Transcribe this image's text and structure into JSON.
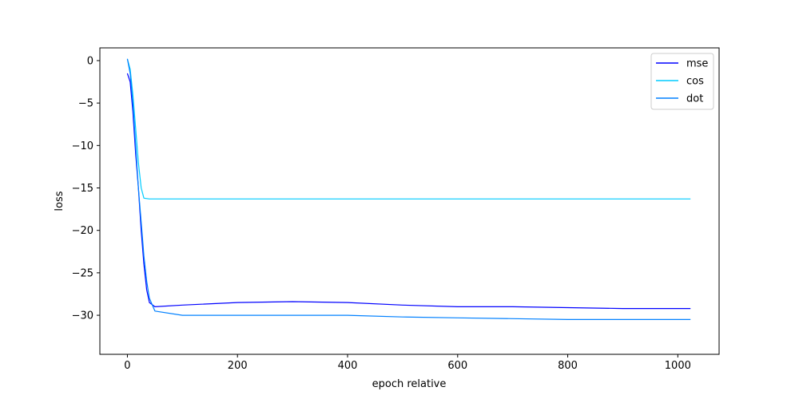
{
  "chart_data": {
    "type": "line",
    "title": "",
    "xlabel": "epoch relative",
    "ylabel": "loss",
    "xlim": [
      -50,
      1075
    ],
    "ylim": [
      -34.6,
      1.5
    ],
    "xticks": [
      0,
      200,
      400,
      600,
      800,
      1000
    ],
    "yticks": [
      0,
      -5,
      -10,
      -15,
      -20,
      -25,
      -30
    ],
    "grid": false,
    "legend_position": "top-right",
    "series": [
      {
        "name": "mse",
        "color": "#0000ff",
        "x": [
          0,
          5,
          10,
          15,
          20,
          25,
          30,
          35,
          40,
          50,
          100,
          200,
          300,
          400,
          500,
          600,
          700,
          800,
          900,
          1000,
          1023
        ],
        "y": [
          -1.5,
          -2.5,
          -6,
          -11,
          -15,
          -20,
          -24,
          -27,
          -28.5,
          -29,
          -28.8,
          -28.5,
          -28.4,
          -28.5,
          -28.8,
          -29.0,
          -29.0,
          -29.1,
          -29.2,
          -29.2,
          -29.2
        ]
      },
      {
        "name": "cos",
        "color": "#00ccff",
        "x": [
          0,
          5,
          10,
          15,
          20,
          25,
          30,
          40,
          100,
          200,
          400,
          600,
          800,
          1000,
          1023
        ],
        "y": [
          0.2,
          -1,
          -4,
          -8,
          -12,
          -15,
          -16.2,
          -16.3,
          -16.3,
          -16.3,
          -16.3,
          -16.3,
          -16.3,
          -16.3,
          -16.3
        ]
      },
      {
        "name": "dot",
        "color": "#0080ff",
        "x": [
          0,
          5,
          10,
          15,
          20,
          25,
          30,
          35,
          40,
          50,
          100,
          200,
          300,
          400,
          500,
          600,
          700,
          800,
          900,
          1000,
          1023
        ],
        "y": [
          0.2,
          -1.5,
          -5,
          -10,
          -15,
          -19,
          -23,
          -26,
          -28,
          -29.5,
          -30,
          -30,
          -30,
          -30,
          -30.2,
          -30.3,
          -30.4,
          -30.5,
          -30.5,
          -30.5,
          -30.5
        ]
      }
    ]
  }
}
